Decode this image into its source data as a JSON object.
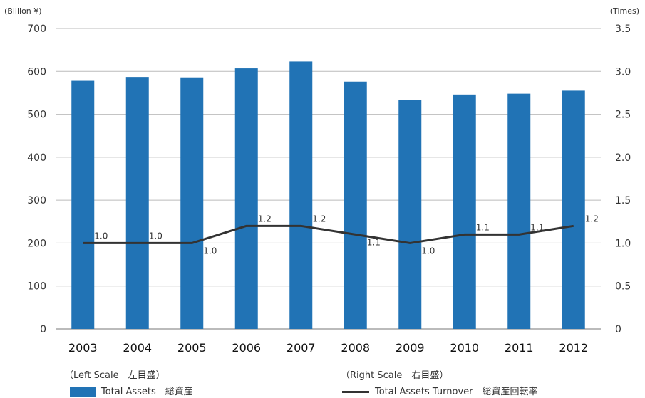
{
  "units": {
    "left": "(Billion ¥)",
    "right": "(Times)"
  },
  "legend": {
    "left_scale": "（Left Scale　左目盛）",
    "right_scale": "（Right Scale　右目盛）",
    "bar_label": "Total Assets　総資産",
    "line_label": "Total Assets Turnover　総資産回転率"
  },
  "colors": {
    "bar": "#2173b5",
    "line": "#333333",
    "highlight_tick": "#2173b5",
    "grid": "#bbbbbb"
  },
  "chart_data": {
    "type": "bar",
    "categories": [
      "2003",
      "2004",
      "2005",
      "2006",
      "2007",
      "2008",
      "2009",
      "2010",
      "2011",
      "2012"
    ],
    "highlight_category": "2012",
    "series": [
      {
        "name": "Total Assets　総資産",
        "type": "bar",
        "axis": "left",
        "values": [
          578,
          587,
          586,
          607,
          623,
          576,
          533,
          546,
          548,
          555
        ]
      },
      {
        "name": "Total Assets Turnover　総資産回転率",
        "type": "line",
        "axis": "right",
        "values": [
          1.0,
          1.0,
          1.0,
          1.2,
          1.2,
          1.1,
          1.0,
          1.1,
          1.1,
          1.2
        ],
        "labels": [
          "1.0",
          "1.0",
          "1.0",
          "1.2",
          "1.2",
          "1.1",
          "1.0",
          "1.1",
          "1.1",
          "1.2"
        ]
      }
    ],
    "y_left": {
      "ylim": [
        0,
        700
      ],
      "ticks": [
        "0",
        "100",
        "200",
        "300",
        "400",
        "500",
        "600",
        "700"
      ]
    },
    "y_right": {
      "ylim": [
        0,
        3.5
      ],
      "ticks": [
        "0",
        "0.5",
        "1.0",
        "1.5",
        "2.0",
        "2.5",
        "3.0",
        "3.5"
      ]
    },
    "grid": true,
    "legend_position": "bottom"
  }
}
